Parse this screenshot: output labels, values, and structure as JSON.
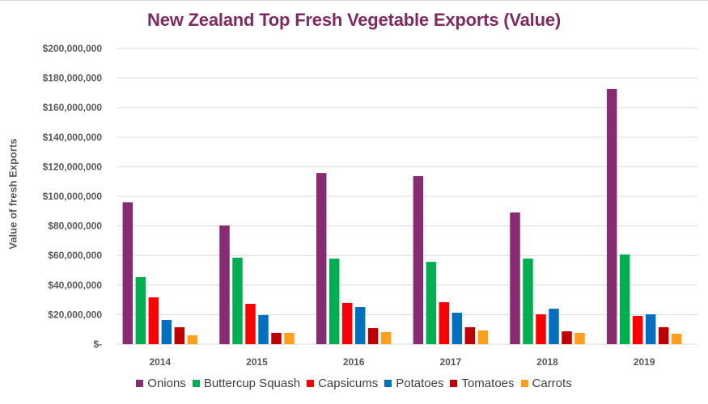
{
  "chart_data": {
    "type": "bar",
    "title": "New Zealand Top Fresh Vegetable Exports (Value)",
    "xlabel": "",
    "ylabel": "Value of fresh Exports",
    "ylim": [
      0,
      200000000
    ],
    "ytick_step": 20000000,
    "yticks": [
      "$-",
      "$20,000,000",
      "$40,000,000",
      "$60,000,000",
      "$80,000,000",
      "$100,000,000",
      "$120,000,000",
      "$140,000,000",
      "$160,000,000",
      "$180,000,000",
      "$200,000,000"
    ],
    "grid": true,
    "legend_position": "bottom",
    "categories": [
      "2014",
      "2015",
      "2016",
      "2017",
      "2018",
      "2019"
    ],
    "series": [
      {
        "name": "Onions",
        "color": "#872c72",
        "values": [
          96000000,
          80300000,
          115800000,
          113700000,
          89100000,
          172700000
        ]
      },
      {
        "name": "Buttercup Squash",
        "color": "#00b050",
        "values": [
          45400000,
          58500000,
          57900000,
          55700000,
          57900000,
          60700000
        ]
      },
      {
        "name": "Capsicums",
        "color": "#ff0000",
        "values": [
          31700000,
          27300000,
          27900000,
          28400000,
          20200000,
          19100000
        ]
      },
      {
        "name": "Potatoes",
        "color": "#0070c0",
        "values": [
          16400000,
          19700000,
          25100000,
          21300000,
          24000000,
          20200000
        ]
      },
      {
        "name": "Tomatoes",
        "color": "#c00000",
        "values": [
          11500000,
          7700000,
          10900000,
          11500000,
          8700000,
          11500000
        ]
      },
      {
        "name": "Carrots",
        "color": "#ff9f1a",
        "values": [
          6000000,
          7700000,
          8200000,
          9300000,
          7700000,
          7100000
        ]
      }
    ]
  }
}
